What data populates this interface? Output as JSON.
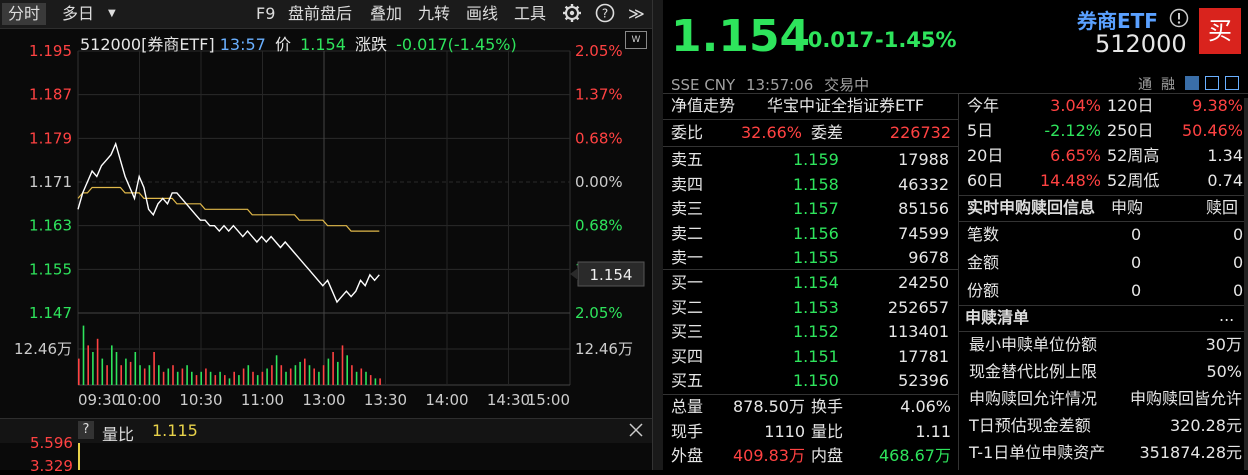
{
  "toolbar": {
    "period_intraday": "分时",
    "period_multiday": "多日",
    "dropdown_glyph": "▼",
    "items": [
      "F9",
      "盘前盘后",
      "叠加",
      "九转",
      "画线",
      "工具"
    ],
    "settings_icon": "gear-icon",
    "help_icon": "help-icon",
    "expand_glyph": "≫"
  },
  "chart_header": {
    "symbol": "512000[券商ETF]",
    "time": "13:57",
    "price_label": "价",
    "price": "1.154",
    "change_label": "涨跌",
    "change": "-0.017(-1.45%)"
  },
  "chart_data": {
    "type": "line",
    "title": "",
    "x_ticks": [
      "09:30",
      "10:00",
      "10:30",
      "11:00",
      "13:00",
      "13:30",
      "14:00",
      "14:30",
      "15:00"
    ],
    "y_left_ticks": [
      "1.195",
      "1.187",
      "1.179",
      "1.171",
      "1.163",
      "1.155",
      "1.147"
    ],
    "y_right_ticks": [
      "2.05%",
      "1.37%",
      "0.68%",
      "0.00%",
      "0.68%",
      "1.37%",
      "2.05%"
    ],
    "ylim": [
      1.147,
      1.195
    ],
    "prev_close": 1.171,
    "current_price_tag": "1.154",
    "volume_max_label": "12.46万",
    "series": [
      {
        "role": "price",
        "color": "#ffffff",
        "values": [
          1.166,
          1.169,
          1.171,
          1.173,
          1.172,
          1.174,
          1.175,
          1.176,
          1.178,
          1.175,
          1.172,
          1.17,
          1.168,
          1.172,
          1.17,
          1.166,
          1.165,
          1.167,
          1.168,
          1.167,
          1.169,
          1.169,
          1.168,
          1.167,
          1.166,
          1.165,
          1.164,
          1.164,
          1.163,
          1.163,
          1.162,
          1.163,
          1.162,
          1.163,
          1.162,
          1.161,
          1.162,
          1.161,
          1.16,
          1.161,
          1.16,
          1.161,
          1.16,
          1.159,
          1.16,
          1.159,
          1.158,
          1.157,
          1.156,
          1.155,
          1.154,
          1.153,
          1.152,
          1.153,
          1.151,
          1.149,
          1.15,
          1.151,
          1.15,
          1.151,
          1.153,
          1.152,
          1.154,
          1.153,
          1.154
        ]
      },
      {
        "role": "average",
        "color": "#e0b84a",
        "values": [
          1.168,
          1.169,
          1.169,
          1.17,
          1.17,
          1.17,
          1.17,
          1.17,
          1.17,
          1.17,
          1.169,
          1.169,
          1.169,
          1.169,
          1.168,
          1.168,
          1.168,
          1.168,
          1.168,
          1.168,
          1.168,
          1.167,
          1.167,
          1.167,
          1.167,
          1.167,
          1.167,
          1.166,
          1.166,
          1.166,
          1.166,
          1.166,
          1.166,
          1.166,
          1.166,
          1.166,
          1.166,
          1.165,
          1.165,
          1.165,
          1.165,
          1.165,
          1.165,
          1.165,
          1.165,
          1.165,
          1.165,
          1.164,
          1.164,
          1.164,
          1.164,
          1.164,
          1.164,
          1.163,
          1.163,
          1.163,
          1.163,
          1.163,
          1.162,
          1.162,
          1.162,
          1.162,
          1.162,
          1.162,
          1.162
        ]
      }
    ],
    "volume": {
      "values": [
        0.4,
        0.9,
        0.6,
        0.5,
        0.7,
        0.4,
        0.3,
        0.6,
        0.5,
        0.3,
        0.4,
        0.35,
        0.5,
        0.3,
        0.25,
        0.3,
        0.5,
        0.3,
        0.2,
        0.25,
        0.3,
        0.2,
        0.25,
        0.3,
        0.2,
        0.15,
        0.2,
        0.25,
        0.2,
        0.15,
        0.2,
        0.15,
        0.1,
        0.2,
        0.15,
        0.25,
        0.3,
        0.2,
        0.15,
        0.2,
        0.25,
        0.3,
        0.45,
        0.3,
        0.2,
        0.25,
        0.3,
        0.35,
        0.4,
        0.3,
        0.25,
        0.2,
        0.3,
        0.4,
        0.5,
        0.35,
        0.6,
        0.45,
        0.3,
        0.2,
        0.25,
        0.2,
        0.15,
        0.1,
        0.1
      ],
      "colors": [
        "r",
        "g",
        "r",
        "g",
        "r",
        "g",
        "r",
        "g",
        "g",
        "r",
        "g",
        "r",
        "g",
        "g",
        "r",
        "g",
        "r",
        "g",
        "r",
        "g",
        "r",
        "g",
        "r",
        "g",
        "g",
        "r",
        "g",
        "r",
        "g",
        "r",
        "g",
        "r",
        "g",
        "r",
        "g",
        "r",
        "g",
        "r",
        "g",
        "r",
        "g",
        "r",
        "g",
        "r",
        "g",
        "r",
        "g",
        "g",
        "r",
        "g",
        "r",
        "g",
        "r",
        "g",
        "r",
        "g",
        "r",
        "g",
        "r",
        "g",
        "r",
        "g",
        "r",
        "g",
        "r"
      ]
    }
  },
  "sub_indicator": {
    "help_glyph": "?",
    "name": "量比",
    "value": "1.115",
    "axis_top": "5.596",
    "axis_second": "3.329",
    "close_icon": "close-icon"
  },
  "quote": {
    "price": "1.154",
    "change": "-0.017",
    "change_pct": "-1.45%",
    "name": "券商ETF",
    "code": "512000",
    "info_icon": "info-icon",
    "buy_label": "买",
    "exchange": "SSE",
    "currency": "CNY",
    "time": "13:57:06",
    "status": "交易中",
    "tag_tong": "通",
    "tag_rong": "融",
    "nav_label": "净值走势",
    "index_name": "华宝中证全指证券ETF"
  },
  "order_book": {
    "weibi_label": "委比",
    "weibi": "32.66%",
    "weicha_label": "委差",
    "weicha": "226732",
    "asks": [
      {
        "label": "卖五",
        "price": "1.159",
        "volume": "17988"
      },
      {
        "label": "卖四",
        "price": "1.158",
        "volume": "46332"
      },
      {
        "label": "卖三",
        "price": "1.157",
        "volume": "85156"
      },
      {
        "label": "卖二",
        "price": "1.156",
        "volume": "74599"
      },
      {
        "label": "卖一",
        "price": "1.155",
        "volume": "9678"
      }
    ],
    "bids": [
      {
        "label": "买一",
        "price": "1.154",
        "volume": "24250"
      },
      {
        "label": "买二",
        "price": "1.153",
        "volume": "252657"
      },
      {
        "label": "买三",
        "price": "1.152",
        "volume": "113401"
      },
      {
        "label": "买四",
        "price": "1.151",
        "volume": "17781"
      },
      {
        "label": "买五",
        "price": "1.150",
        "volume": "52396"
      }
    ],
    "stats": {
      "zongliang_label": "总量",
      "zongliang": "878.50万",
      "huanshou_label": "换手",
      "huanshou": "4.06%",
      "xianshou_label": "现手",
      "xianshou": "1110",
      "liangbi_label": "量比",
      "liangbi": "1.11",
      "waipan_label": "外盘",
      "waipan": "409.83万",
      "neipan_label": "内盘",
      "neipan": "468.67万"
    }
  },
  "performance": [
    {
      "l1": "今年",
      "v1": "3.04%",
      "c1": "red",
      "l2": "120日",
      "v2": "9.38%",
      "c2": "red"
    },
    {
      "l1": "5日",
      "v1": "-2.12%",
      "c1": "green",
      "l2": "250日",
      "v2": "50.46%",
      "c2": "red"
    },
    {
      "l1": "20日",
      "v1": "6.65%",
      "c1": "red",
      "l2": "52周高",
      "v2": "1.34",
      "c2": "white"
    },
    {
      "l1": "60日",
      "v1": "14.48%",
      "c1": "red",
      "l2": "52周低",
      "v2": "0.74",
      "c2": "white"
    }
  ],
  "creation": {
    "title": "实时申购赎回信息",
    "col_sub": "申购",
    "col_red": "赎回",
    "rows": [
      {
        "label": "笔数",
        "sub": "0",
        "red": "0"
      },
      {
        "label": "金额",
        "sub": "0",
        "red": "0"
      },
      {
        "label": "份额",
        "sub": "0",
        "red": "0"
      }
    ]
  },
  "redemption_list": {
    "title": "申赎清单",
    "more": "...",
    "rows": [
      {
        "label": "最小申赎单位份额",
        "value": "30万"
      },
      {
        "label": "现金替代比例上限",
        "value": "50%"
      },
      {
        "label": "申购赎回允许情况",
        "value": "申购赎回皆允许"
      },
      {
        "label": "T日预估现金差额",
        "value": "320.28元"
      },
      {
        "label": "T-1日单位申赎资产",
        "value": "351874.28元"
      }
    ]
  }
}
